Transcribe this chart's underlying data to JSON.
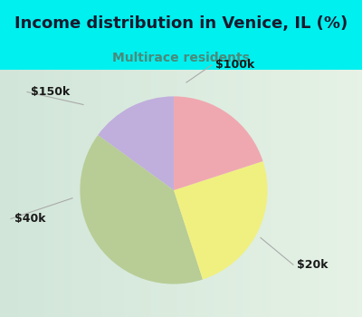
{
  "title": "Income distribution in Venice, IL (%)",
  "subtitle": "Multirace residents",
  "title_color": "#1a1a2e",
  "subtitle_color": "#4a8a7a",
  "background_color": "#00EFEF",
  "labels": [
    "$100k",
    "$20k",
    "$40k",
    "$150k"
  ],
  "values": [
    15,
    40,
    25,
    20
  ],
  "colors": [
    "#c0aedd",
    "#b8cc96",
    "#f0f080",
    "#f0a8b0"
  ],
  "start_angle": 90,
  "label_font_size": 9,
  "title_font_size": 13,
  "subtitle_font_size": 10
}
